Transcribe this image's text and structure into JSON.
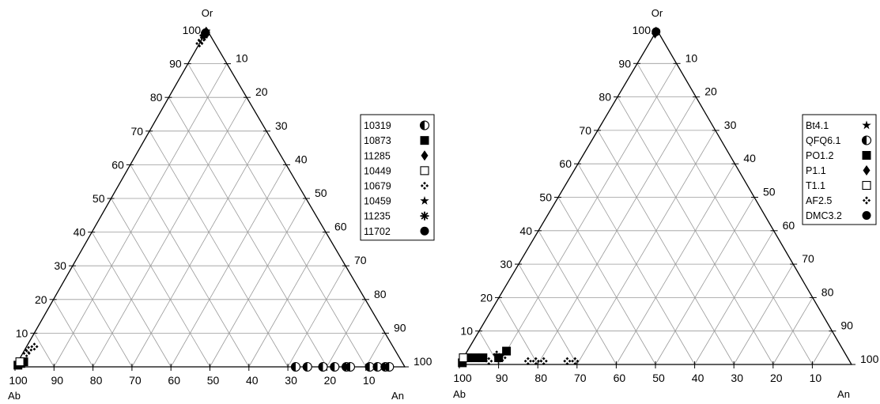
{
  "chart_data": [
    {
      "type": "scatter",
      "subtype": "ternary",
      "vertices": {
        "top": "Or",
        "left": "Ab",
        "right": "An"
      },
      "tick_values": [
        10,
        20,
        30,
        40,
        50,
        60,
        70,
        80,
        90,
        100
      ],
      "tick_labels": [
        "10",
        "20",
        "30",
        "40",
        "50",
        "60",
        "70",
        "80",
        "90",
        "100"
      ],
      "grid": true,
      "legend_position": "right",
      "series": [
        {
          "name": "10319",
          "marker": "half-circle",
          "points": [
            {
              "ab": 28,
              "an": 72,
              "or": 0
            },
            {
              "ab": 25,
              "an": 75,
              "or": 0
            },
            {
              "ab": 21,
              "an": 79,
              "or": 0
            },
            {
              "ab": 18,
              "an": 82,
              "or": 0
            },
            {
              "ab": 15,
              "an": 85,
              "or": 0
            },
            {
              "ab": 14,
              "an": 86,
              "or": 0
            },
            {
              "ab": 9,
              "an": 91,
              "or": 0
            },
            {
              "ab": 7,
              "an": 93,
              "or": 0
            },
            {
              "ab": 5,
              "an": 95,
              "or": 0
            },
            {
              "ab": 4,
              "an": 96,
              "or": 0
            }
          ]
        },
        {
          "name": "10873",
          "marker": "square",
          "points": [
            {
              "ab": 99,
              "an": 0.5,
              "or": 0.5
            },
            {
              "ab": 98,
              "an": 1,
              "or": 1
            },
            {
              "ab": 97,
              "an": 1.5,
              "or": 1.5
            }
          ]
        },
        {
          "name": "11285",
          "marker": "diamond",
          "points": [
            {
              "ab": 0.5,
              "an": 0,
              "or": 99.5
            },
            {
              "ab": 1.5,
              "an": 0,
              "or": 98.5
            }
          ]
        },
        {
          "name": "10449",
          "marker": "open-square",
          "points": [
            {
              "ab": 98,
              "an": 0.5,
              "or": 1.5
            }
          ]
        },
        {
          "name": "10679",
          "marker": "clover",
          "points": [
            {
              "ab": 92,
              "an": 2,
              "or": 6
            },
            {
              "ab": 94,
              "an": 1,
              "or": 5
            },
            {
              "ab": 95,
              "an": 1,
              "or": 4
            },
            {
              "ab": 3,
              "an": 0,
              "or": 97
            },
            {
              "ab": 4,
              "an": 0,
              "or": 96
            }
          ]
        },
        {
          "name": "10459",
          "marker": "star",
          "points": [
            {
              "ab": 2,
              "an": 0,
              "or": 98
            }
          ]
        },
        {
          "name": "11235",
          "marker": "asterisk",
          "points": [
            {
              "ab": 1.5,
              "an": 0,
              "or": 98.5
            }
          ]
        },
        {
          "name": "11702",
          "marker": "circle",
          "points": [
            {
              "ab": 1,
              "an": 0,
              "or": 99
            },
            {
              "ab": 0.8,
              "an": 0,
              "or": 99.2
            }
          ]
        }
      ]
    },
    {
      "type": "scatter",
      "subtype": "ternary",
      "vertices": {
        "top": "Or",
        "left": "Ab",
        "right": "An"
      },
      "tick_values": [
        10,
        20,
        30,
        40,
        50,
        60,
        70,
        80,
        90,
        100
      ],
      "tick_labels": [
        "10",
        "20",
        "30",
        "40",
        "50",
        "60",
        "70",
        "80",
        "90",
        "100"
      ],
      "grid": true,
      "legend_position": "right",
      "series": [
        {
          "name": "Bt4.1",
          "marker": "star",
          "points": [
            {
              "ab": 98,
              "an": 0,
              "or": 2
            }
          ]
        },
        {
          "name": "QFQ6.1",
          "marker": "half-circle",
          "points": []
        },
        {
          "name": "PO1.2",
          "marker": "square",
          "points": [
            {
              "ab": 99,
              "an": 0.5,
              "or": 0.5
            },
            {
              "ab": 97,
              "an": 1,
              "or": 2
            },
            {
              "ab": 95,
              "an": 3,
              "or": 2
            },
            {
              "ab": 93,
              "an": 5,
              "or": 2
            },
            {
              "ab": 89,
              "an": 9,
              "or": 2
            },
            {
              "ab": 86,
              "an": 10,
              "or": 4
            }
          ]
        },
        {
          "name": "P1.1",
          "marker": "diamond",
          "points": [
            {
              "ab": 1,
              "an": 0,
              "or": 99
            },
            {
              "ab": 0.5,
              "an": 0,
              "or": 99.5
            }
          ]
        },
        {
          "name": "T1.1",
          "marker": "open-square",
          "points": [
            {
              "ab": 98,
              "an": 0,
              "or": 2
            }
          ]
        },
        {
          "name": "AF2.5",
          "marker": "clover",
          "points": [
            {
              "ab": 92,
              "an": 7,
              "or": 1
            },
            {
              "ab": 89,
              "an": 8,
              "or": 3
            },
            {
              "ab": 88,
              "an": 10,
              "or": 2
            },
            {
              "ab": 82,
              "an": 17,
              "or": 1
            },
            {
              "ab": 80,
              "an": 19,
              "or": 1
            },
            {
              "ab": 78,
              "an": 21,
              "or": 1
            },
            {
              "ab": 72,
              "an": 27,
              "or": 1
            },
            {
              "ab": 70,
              "an": 29,
              "or": 1
            }
          ]
        },
        {
          "name": "DMC3.2",
          "marker": "circle",
          "points": [
            {
              "ab": 0.5,
              "an": 0,
              "or": 99.5
            }
          ]
        }
      ]
    }
  ]
}
